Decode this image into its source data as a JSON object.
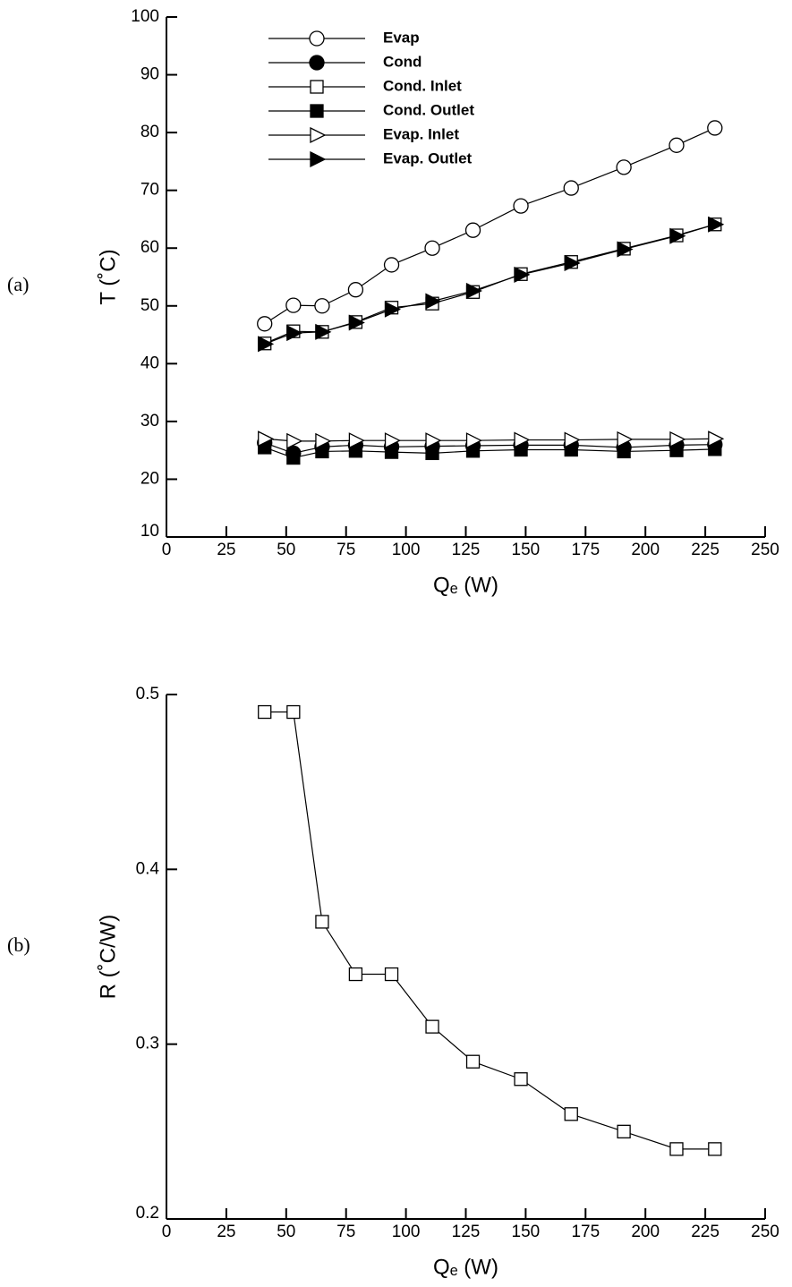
{
  "chart_data": [
    {
      "type": "line",
      "panel_label": "(a)",
      "x_label": "Qₑ (W)",
      "y_label": "T (˚C)",
      "xlim": [
        0,
        250
      ],
      "xticks": [
        0,
        25,
        50,
        75,
        100,
        125,
        150,
        175,
        200,
        225,
        250
      ],
      "ylim": [
        10,
        100
      ],
      "yticks": [
        10,
        20,
        30,
        40,
        50,
        60,
        70,
        80,
        90,
        100
      ],
      "legend": "top-left",
      "x": [
        41,
        53,
        65,
        79,
        94,
        111,
        128,
        148,
        169,
        191,
        213,
        229
      ],
      "series": [
        {
          "name": "Evap",
          "color": "#000000",
          "marker": "circle",
          "filled": false,
          "values": [
            46.9,
            50.1,
            50,
            52.8,
            57.1,
            60,
            63.1,
            67.3,
            70.4,
            74,
            77.8,
            80.8
          ]
        },
        {
          "name": "Cond",
          "color": "#000000",
          "marker": "circle",
          "filled": true,
          "values": [
            26.3,
            24.5,
            25.6,
            25.9,
            25.6,
            25.7,
            25.8,
            25.9,
            25.9,
            25.5,
            25.9,
            26
          ]
        },
        {
          "name": "Cond. Inlet",
          "color": "#000000",
          "marker": "square",
          "filled": false,
          "values": [
            43.5,
            45.6,
            45.5,
            47.2,
            49.7,
            50.4,
            52.4,
            55.5,
            57.6,
            59.9,
            62.2,
            64.1
          ]
        },
        {
          "name": "Cond. Outlet",
          "color": "#000000",
          "marker": "square",
          "filled": true,
          "values": [
            25.5,
            23.7,
            24.8,
            24.9,
            24.7,
            24.5,
            24.9,
            25.1,
            25.1,
            24.8,
            25,
            25.2
          ]
        },
        {
          "name": "Evap. Inlet",
          "color": "#000000",
          "marker": "triangle",
          "filled": false,
          "values": [
            27,
            26.6,
            26.6,
            26.7,
            26.7,
            26.7,
            26.7,
            26.8,
            26.8,
            26.9,
            26.9,
            27
          ]
        },
        {
          "name": "Evap. Outlet",
          "color": "#000000",
          "marker": "triangle",
          "filled": true,
          "values": [
            43.4,
            45.3,
            45.5,
            47.1,
            49.4,
            50.8,
            52.6,
            55.4,
            57.4,
            59.8,
            62.1,
            64.1
          ]
        }
      ]
    },
    {
      "type": "line",
      "panel_label": "(b)",
      "x_label": "Qₑ (W)",
      "y_label": "R (˚C/W)",
      "xlim": [
        0,
        250
      ],
      "xticks": [
        0,
        25,
        50,
        75,
        100,
        125,
        150,
        175,
        200,
        225,
        250
      ],
      "ylim": [
        0.2,
        0.5
      ],
      "yticks": [
        0.2,
        0.3,
        0.4,
        0.5
      ],
      "x": [
        41,
        53,
        65,
        79,
        94,
        111,
        128,
        148,
        169,
        191,
        213,
        229
      ],
      "series": [
        {
          "color": "#000000",
          "marker": "square",
          "filled": false,
          "values": [
            0.49,
            0.49,
            0.37,
            0.34,
            0.34,
            0.31,
            0.29,
            0.28,
            0.26,
            0.25,
            0.24,
            0.24
          ]
        }
      ]
    }
  ]
}
